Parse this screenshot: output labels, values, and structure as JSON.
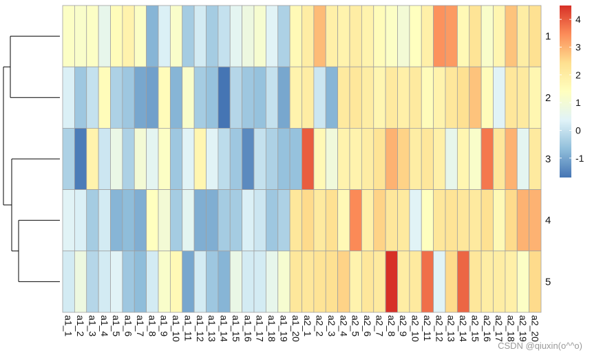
{
  "chart_data": {
    "type": "heatmap",
    "title": "",
    "columns": [
      "a1_1",
      "a1_2",
      "a1_3",
      "a1_4",
      "a1_5",
      "a1_6",
      "a1_7",
      "a1_8",
      "a1_9",
      "a1_10",
      "a1_11",
      "a1_12",
      "a1_13",
      "a1_14",
      "a1_15",
      "a1_16",
      "a1_17",
      "a1_18",
      "a1_19",
      "a1_20",
      "a2_1",
      "a2_2",
      "a2_3",
      "a2_4",
      "a2_5",
      "a2_6",
      "a2_7",
      "a2_8",
      "a2_9",
      "a2_10",
      "a2_11",
      "a2_12",
      "a2_13",
      "a2_14",
      "a2_15",
      "a2_16",
      "a2_17",
      "a2_18",
      "a2_19",
      "a2_20"
    ],
    "rows": [
      "1",
      "2",
      "3",
      "4",
      "5"
    ],
    "values": [
      [
        1.3,
        1.2,
        1.3,
        0.6,
        1.5,
        1.8,
        1.3,
        -0.8,
        0.3,
        1.2,
        -0.4,
        0.2,
        -0.4,
        0.0,
        0.5,
        0.8,
        1.1,
        0.4,
        -0.3,
        1.6,
        2.0,
        2.9,
        1.9,
        1.8,
        2.0,
        1.8,
        1.5,
        1.3,
        1.0,
        1.4,
        1.9,
        3.4,
        3.3,
        1.6,
        2.3,
        1.2,
        1.7,
        2.8,
        2.0,
        2.4
      ],
      [
        0.3,
        -0.5,
        0.0,
        1.5,
        -0.3,
        -0.5,
        -1.0,
        -1.1,
        1.5,
        -0.8,
        1.2,
        -0.4,
        -0.6,
        -1.7,
        -0.2,
        -0.5,
        -0.6,
        0.0,
        -1.0,
        1.8,
        2.0,
        0.1,
        -0.8,
        2.1,
        2.2,
        2.0,
        1.7,
        2.1,
        1.9,
        2.1,
        1.5,
        1.8,
        2.2,
        2.4,
        2.8,
        1.5,
        0.4,
        2.2,
        2.1,
        1.7
      ],
      [
        -0.3,
        -1.6,
        1.8,
        0.1,
        0.7,
        -0.3,
        1.0,
        0.5,
        1.3,
        -0.5,
        0.4,
        1.7,
        0.4,
        -0.1,
        -0.5,
        -1.4,
        0.0,
        -0.3,
        -0.6,
        -0.6,
        4.0,
        1.6,
        0.9,
        1.8,
        1.8,
        2.0,
        2.3,
        3.0,
        2.6,
        2.0,
        2.2,
        1.9,
        0.6,
        1.7,
        1.2,
        3.7,
        2.2,
        3.0,
        0.5,
        2.1
      ],
      [
        0.4,
        0.3,
        -0.4,
        0.2,
        -0.8,
        -0.7,
        -0.9,
        1.4,
        1.0,
        -0.4,
        0.5,
        -0.9,
        -0.9,
        -0.4,
        -0.4,
        0.3,
        0.1,
        -0.5,
        -0.3,
        2.2,
        2.5,
        2.1,
        2.4,
        1.6,
        3.5,
        1.9,
        2.6,
        2.2,
        2.1,
        0.4,
        1.4,
        2.2,
        2.3,
        2.2,
        2.1,
        2.4,
        1.6,
        2.5,
        3.0,
        3.0
      ],
      [
        0.2,
        0.8,
        -0.2,
        0.2,
        0.4,
        -0.5,
        -0.7,
        0.2,
        1.2,
        1.6,
        -1.0,
        0.2,
        -0.5,
        -0.8,
        0.7,
        0.2,
        0.2,
        0.6,
        1.1,
        2.2,
        2.2,
        2.3,
        2.4,
        2.6,
        1.8,
        2.2,
        2.1,
        4.5,
        2.0,
        2.1,
        3.8,
        0.4,
        2.5,
        3.9,
        2.2,
        2.0,
        2.0,
        1.9,
        1.3,
        2.5
      ]
    ],
    "row_dendrogram": "((1,2),(3,(4,5)))",
    "legend": {
      "position": "right",
      "ticks": [
        4,
        3,
        2,
        1,
        0,
        -1
      ],
      "range": [
        -1.7,
        4.5
      ]
    },
    "colors": [
      "#4575b4",
      "#91bfdb",
      "#e0f3f8",
      "#ffffbf",
      "#fee090",
      "#fc8d59",
      "#d73027"
    ]
  },
  "watermark": "CSDN @qiuxin(o^^o)"
}
